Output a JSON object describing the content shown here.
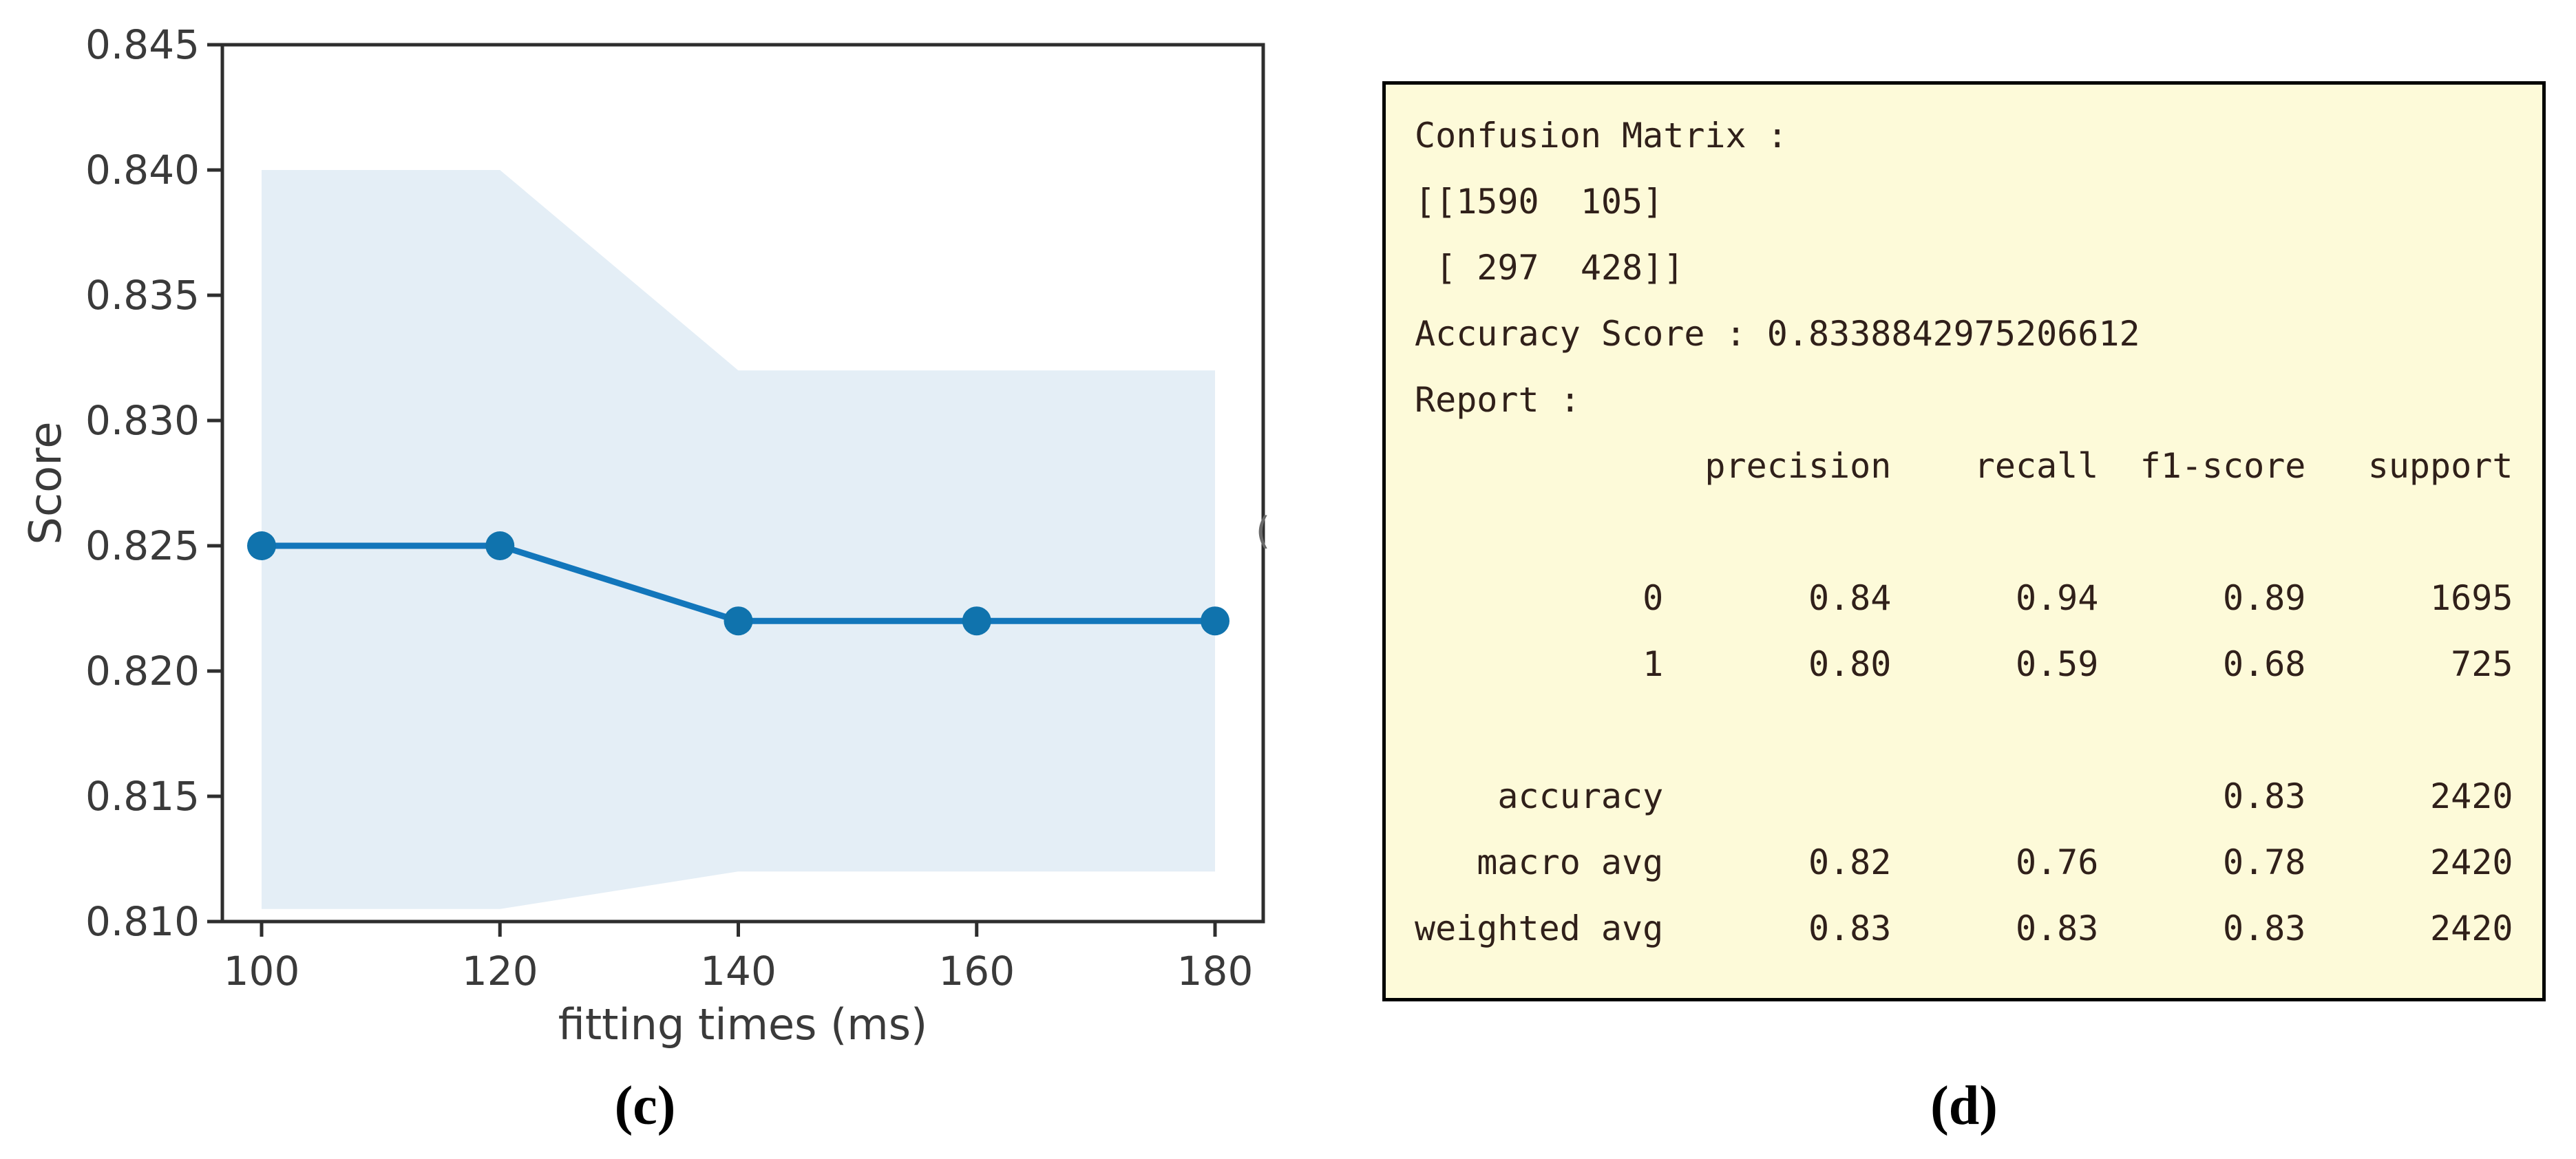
{
  "figure": {
    "caption_left": "(c)",
    "caption_right": "(d)"
  },
  "chart_data": {
    "type": "line",
    "title": "",
    "xlabel": "fitting times (ms)",
    "ylabel": "Score",
    "x": [
      100,
      120,
      140,
      160,
      180
    ],
    "series": [
      {
        "name": "score",
        "values": [
          0.825,
          0.825,
          0.822,
          0.822,
          0.822
        ]
      }
    ],
    "band": {
      "upper": [
        0.84,
        0.84,
        0.832,
        0.832,
        0.832
      ],
      "lower": [
        0.8105,
        0.8105,
        0.812,
        0.812,
        0.812
      ]
    },
    "xticks": [
      100,
      120,
      140,
      160,
      180
    ],
    "yticks": [
      0.845,
      0.84,
      0.835,
      0.83,
      0.825,
      0.82,
      0.815,
      0.81
    ],
    "xlim": [
      98,
      183
    ],
    "ylim": [
      0.81,
      0.845
    ],
    "grid": false,
    "legend": "none",
    "colors": {
      "line": "#1276bb",
      "marker": "#1073ad",
      "band": "#e4eef6",
      "axis": "#2e2e2e",
      "tick_text": "#3a3a3a"
    }
  },
  "console_panel": {
    "bg": "#fdfad9",
    "border": "#000000",
    "text_color": "#30201a",
    "lines": [
      "Confusion Matrix :",
      "[[1590  105]",
      " [ 297  428]]",
      "Accuracy Score : 0.8338842975206612",
      "Report :",
      "              precision    recall  f1-score   support",
      "",
      "           0       0.84      0.94      0.89      1695",
      "           1       0.80      0.59      0.68       725",
      "",
      "    accuracy                           0.83      2420",
      "   macro avg       0.82      0.76      0.78      2420",
      "weighted avg       0.83      0.83      0.83      2420"
    ]
  },
  "artifact_glyph": "("
}
